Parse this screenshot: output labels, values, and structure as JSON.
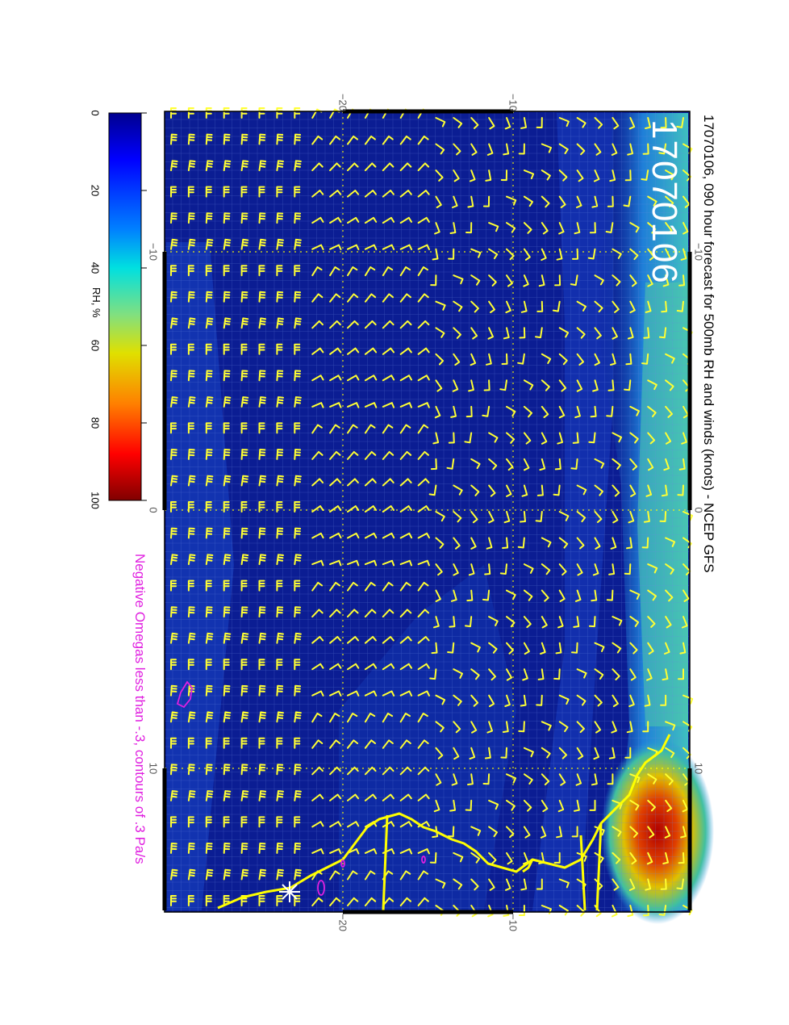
{
  "title": "17070106, 090 hour forecast for 500mb RH and winds (knots) - NCEP GFS",
  "stamp": "17070106",
  "omega_note": "Negative Omegas less than -.3, contours of .3 Pa/s",
  "colorbar": {
    "label": "RH, %",
    "ticks": [
      "0",
      "20",
      "40",
      "60",
      "80",
      "100"
    ]
  },
  "axes": {
    "top_ticks": [
      "−20",
      "−10"
    ],
    "bottom_ticks": [
      "−20",
      "−10"
    ],
    "left_ticks": [
      "−10",
      "0",
      "10"
    ],
    "right_ticks": [
      "−10",
      "0",
      "10"
    ]
  },
  "colors": {
    "background_rh": "#0a1a8c",
    "barbs": "#ffff33",
    "coast": "#ffff00",
    "omega_contour": "#e020e0",
    "stamp": "#ffffff"
  }
}
